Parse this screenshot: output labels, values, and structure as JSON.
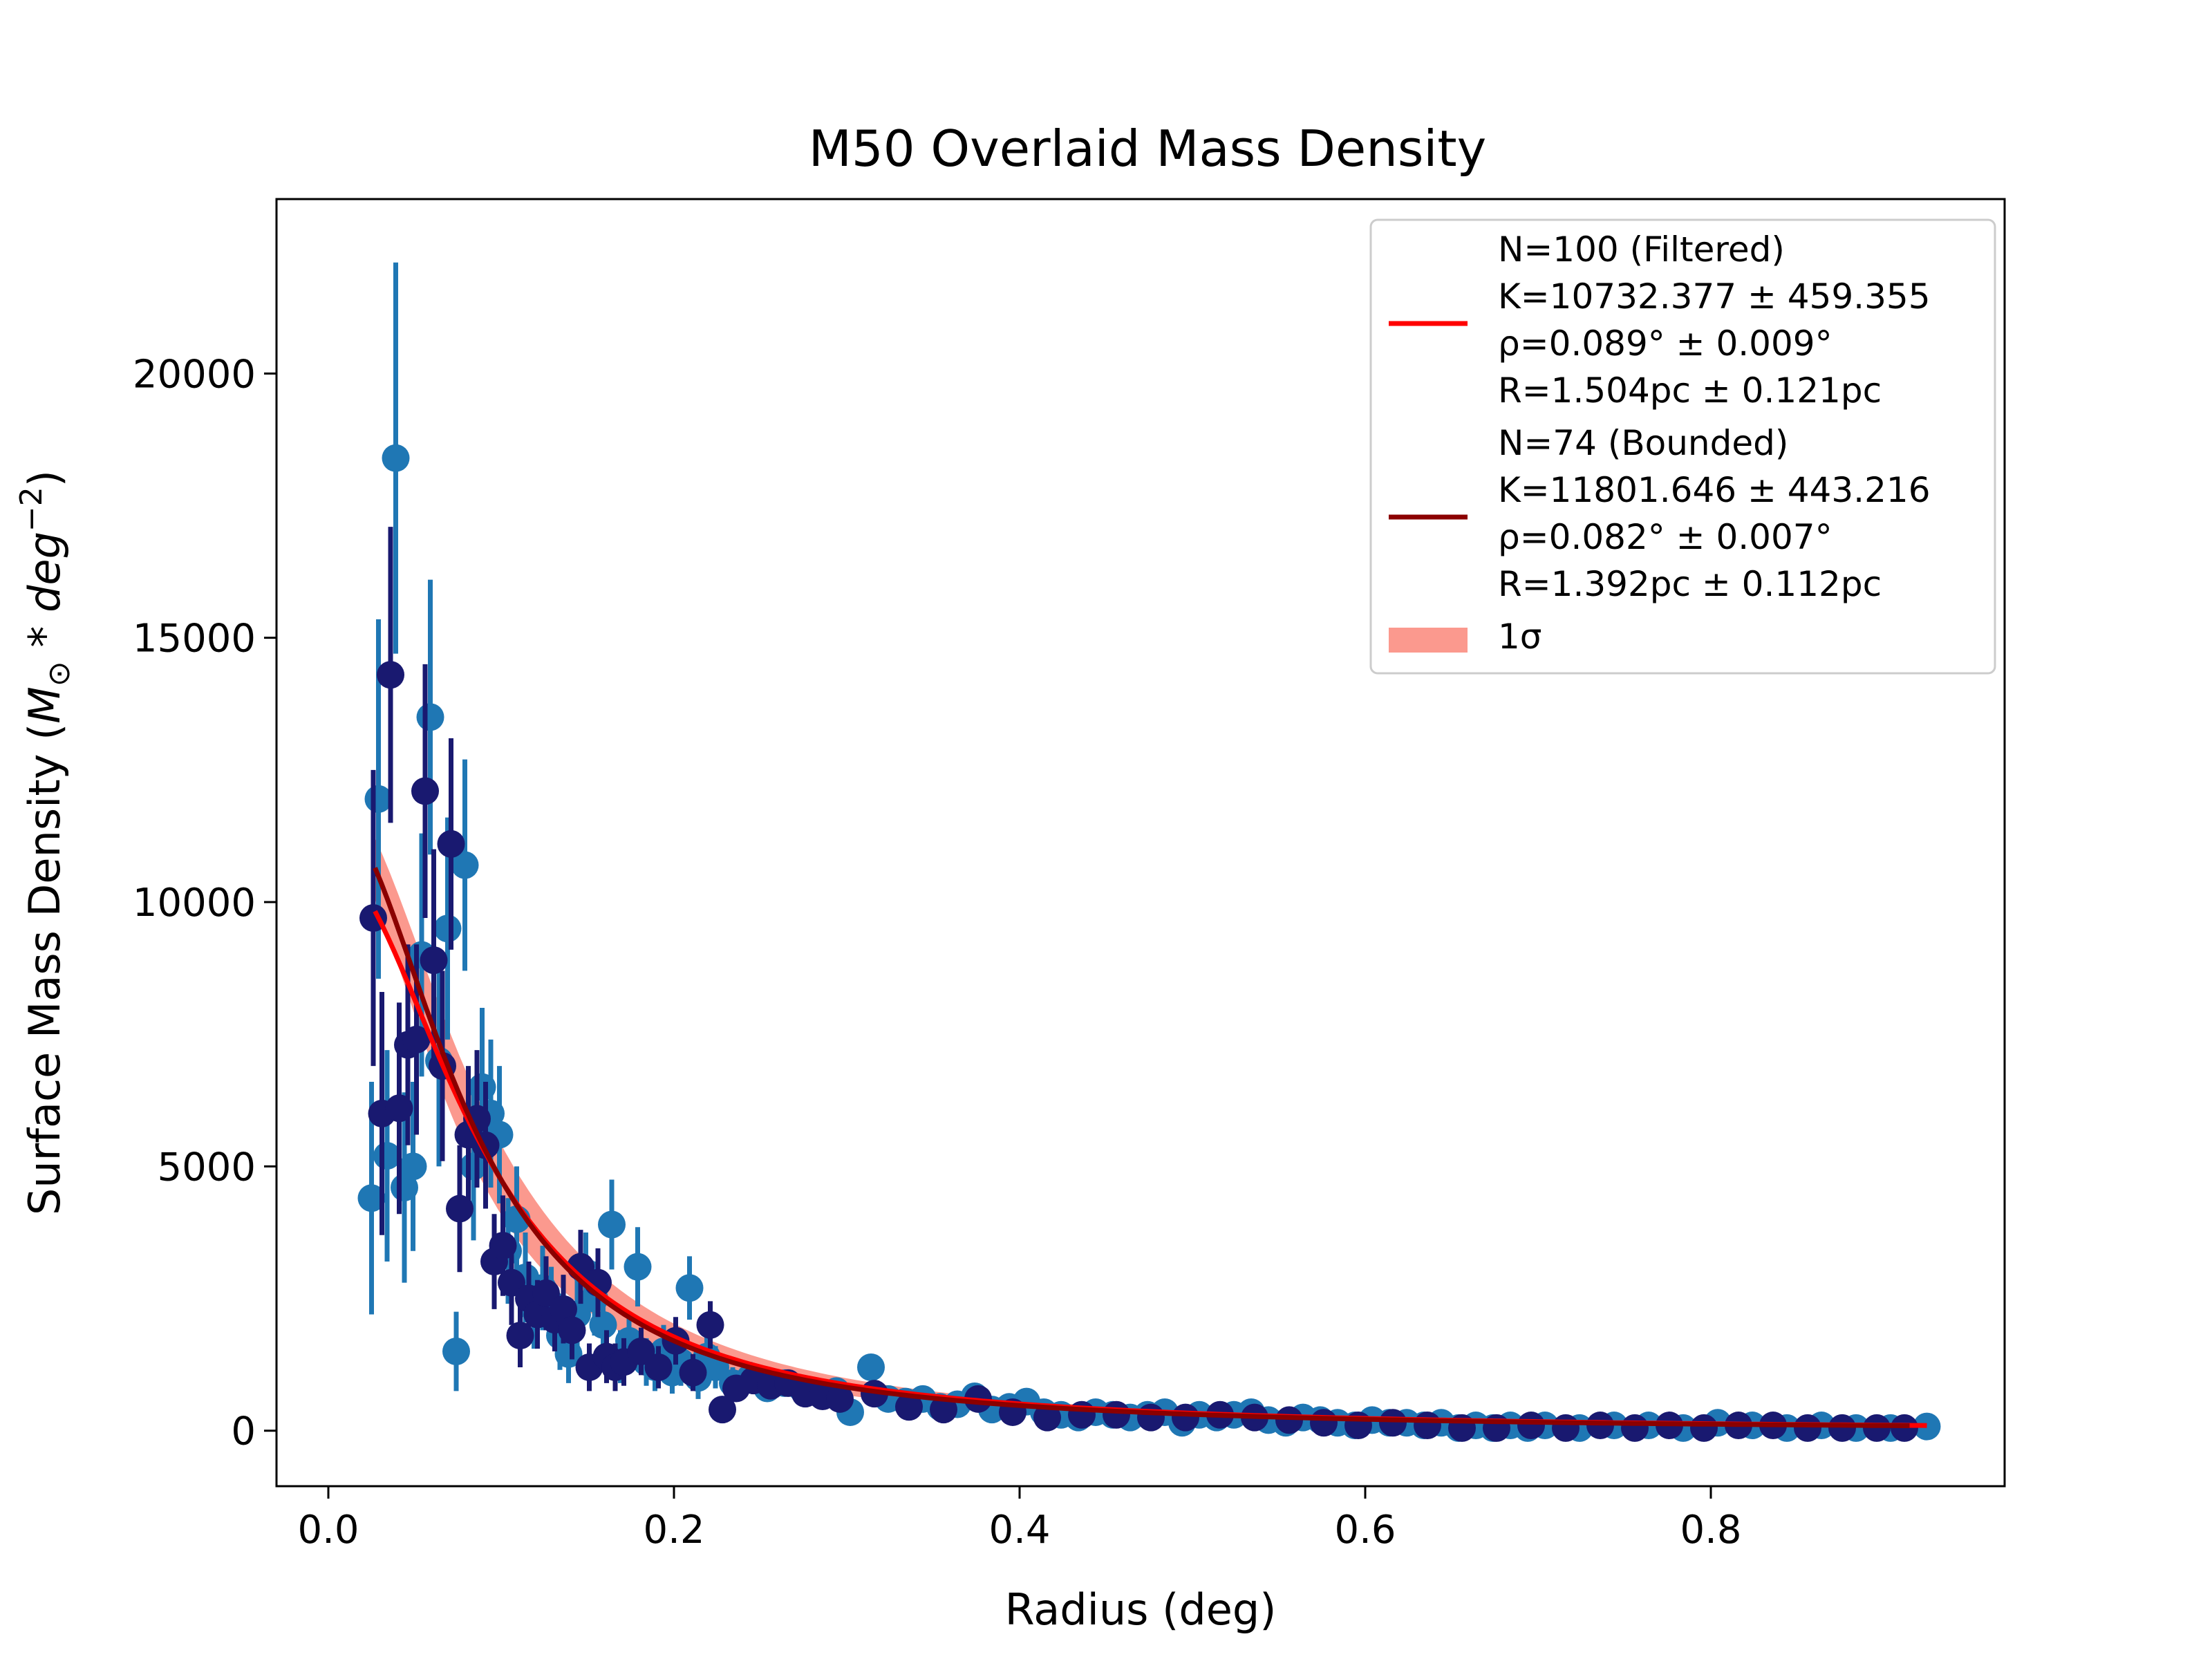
{
  "chart_data": {
    "type": "scatter",
    "title": "M50 Overlaid Mass Density",
    "xlabel": "Radius (deg)",
    "ylabel_main": "Surface Mass Density (",
    "ylabel_math_m": "M",
    "ylabel_math_sub": "⊙",
    "ylabel_math_mid": " * deg",
    "ylabel_math_sup": "−2",
    "ylabel_close": ")",
    "xlim": [
      -0.03,
      0.97
    ],
    "ylim": [
      -1050,
      23300
    ],
    "xticks": [
      0.0,
      0.2,
      0.4,
      0.6,
      0.8
    ],
    "xtick_labels": [
      "0.0",
      "0.2",
      "0.4",
      "0.6",
      "0.8"
    ],
    "yticks": [
      0,
      5000,
      10000,
      15000,
      20000
    ],
    "ytick_labels": [
      "0",
      "5000",
      "10000",
      "15000",
      "20000"
    ],
    "grid": false,
    "legend_position": "top-right",
    "colors": {
      "filtered_points": "#1f77b4",
      "bounded_points": "#191970",
      "filtered_fit": "#ff0000",
      "bounded_fit": "#8b0000",
      "band": "#fa8072"
    },
    "legend": [
      {
        "kind": "line",
        "color": "#ff0000",
        "lines": [
          "N=100 (Filtered)",
          "K=10732.377 ± 459.355",
          "ρ=0.089° ± 0.009°",
          "R=1.504pc ± 0.121pc"
        ]
      },
      {
        "kind": "line",
        "color": "#8b0000",
        "lines": [
          "N=74 (Bounded)",
          "K=11801.646 ± 443.216",
          "ρ=0.082° ± 0.007°",
          "R=1.392pc ± 0.112pc"
        ]
      },
      {
        "kind": "patch",
        "color": "#fa8072",
        "lines": [
          "1σ"
        ]
      }
    ],
    "fits": [
      {
        "name": "N=100 (Filtered)",
        "K": 10732.377,
        "rho": 0.089,
        "color": "#ff0000",
        "x_range": [
          0.027,
          0.925
        ]
      },
      {
        "name": "N=74 (Bounded)",
        "K": 11801.646,
        "rho": 0.082,
        "color": "#8b0000",
        "x_range": [
          0.027,
          0.915
        ]
      }
    ],
    "series": [
      {
        "name": "Filtered",
        "color": "#1f77b4",
        "points": [
          [
            0.025,
            4400,
            2200
          ],
          [
            0.029,
            11950,
            3400
          ],
          [
            0.034,
            5200,
            2000
          ],
          [
            0.039,
            18400,
            3700
          ],
          [
            0.044,
            4600,
            1800
          ],
          [
            0.049,
            5000,
            1600
          ],
          [
            0.054,
            9000,
            2300
          ],
          [
            0.059,
            13500,
            2600
          ],
          [
            0.064,
            7000,
            2000
          ],
          [
            0.069,
            9500,
            2100
          ],
          [
            0.074,
            1500,
            750
          ],
          [
            0.079,
            10700,
            2000
          ],
          [
            0.084,
            5000,
            1400
          ],
          [
            0.089,
            6500,
            1500
          ],
          [
            0.094,
            6000,
            1400
          ],
          [
            0.099,
            5600,
            1300
          ],
          [
            0.104,
            3400,
            1000
          ],
          [
            0.109,
            4000,
            1000
          ],
          [
            0.114,
            2900,
            850
          ],
          [
            0.119,
            2300,
            750
          ],
          [
            0.124,
            2700,
            800
          ],
          [
            0.129,
            2400,
            700
          ],
          [
            0.134,
            1800,
            650
          ],
          [
            0.139,
            1450,
            550
          ],
          [
            0.144,
            2200,
            650
          ],
          [
            0.149,
            3000,
            750
          ],
          [
            0.154,
            2500,
            700
          ],
          [
            0.159,
            2000,
            600
          ],
          [
            0.164,
            3900,
            850
          ],
          [
            0.169,
            1400,
            500
          ],
          [
            0.174,
            1700,
            550
          ],
          [
            0.179,
            3100,
            750
          ],
          [
            0.184,
            1300,
            450
          ],
          [
            0.189,
            1200,
            450
          ],
          [
            0.194,
            1500,
            500
          ],
          [
            0.199,
            1100,
            400
          ],
          [
            0.204,
            1300,
            450
          ],
          [
            0.209,
            2700,
            600
          ],
          [
            0.214,
            1000,
            400
          ],
          [
            0.219,
            1400,
            450
          ],
          [
            0.224,
            1200,
            400
          ],
          [
            0.234,
            900,
            300
          ],
          [
            0.244,
            1000,
            300
          ],
          [
            0.254,
            800,
            250
          ],
          [
            0.264,
            900,
            250
          ],
          [
            0.274,
            800,
            250
          ],
          [
            0.284,
            700,
            220
          ],
          [
            0.294,
            750,
            220
          ],
          [
            0.302,
            350,
            160
          ],
          [
            0.314,
            1200,
            250
          ],
          [
            0.324,
            600,
            180
          ],
          [
            0.334,
            550,
            170
          ],
          [
            0.344,
            600,
            170
          ],
          [
            0.354,
            450,
            150
          ],
          [
            0.364,
            500,
            150
          ],
          [
            0.374,
            650,
            160
          ],
          [
            0.384,
            400,
            130
          ],
          [
            0.394,
            450,
            130
          ],
          [
            0.404,
            550,
            140
          ],
          [
            0.414,
            350,
            120
          ],
          [
            0.424,
            300,
            110
          ],
          [
            0.434,
            250,
            100
          ],
          [
            0.444,
            350,
            110
          ],
          [
            0.454,
            300,
            100
          ],
          [
            0.464,
            250,
            90
          ],
          [
            0.474,
            300,
            100
          ],
          [
            0.484,
            350,
            100
          ],
          [
            0.494,
            150,
            80
          ],
          [
            0.504,
            300,
            90
          ],
          [
            0.514,
            250,
            85
          ],
          [
            0.524,
            300,
            90
          ],
          [
            0.534,
            350,
            90
          ],
          [
            0.544,
            200,
            80
          ],
          [
            0.554,
            150,
            70
          ],
          [
            0.564,
            250,
            80
          ],
          [
            0.574,
            200,
            75
          ],
          [
            0.584,
            150,
            70
          ],
          [
            0.594,
            100,
            60
          ],
          [
            0.604,
            200,
            70
          ],
          [
            0.614,
            150,
            65
          ],
          [
            0.624,
            150,
            60
          ],
          [
            0.634,
            100,
            55
          ],
          [
            0.644,
            150,
            55
          ],
          [
            0.654,
            50,
            50
          ],
          [
            0.664,
            100,
            50
          ],
          [
            0.674,
            50,
            45
          ],
          [
            0.684,
            100,
            45
          ],
          [
            0.694,
            50,
            40
          ],
          [
            0.704,
            100,
            45
          ],
          [
            0.724,
            50,
            40
          ],
          [
            0.744,
            100,
            40
          ],
          [
            0.764,
            100,
            40
          ],
          [
            0.784,
            50,
            35
          ],
          [
            0.804,
            150,
            40
          ],
          [
            0.824,
            100,
            35
          ],
          [
            0.844,
            50,
            30
          ],
          [
            0.864,
            100,
            30
          ],
          [
            0.884,
            50,
            30
          ],
          [
            0.904,
            50,
            30
          ],
          [
            0.925,
            80,
            30
          ]
        ]
      },
      {
        "name": "Bounded",
        "color": "#191970",
        "points": [
          [
            0.026,
            9700,
            2800
          ],
          [
            0.031,
            6000,
            2300
          ],
          [
            0.036,
            14300,
            2800
          ],
          [
            0.041,
            6100,
            2000
          ],
          [
            0.046,
            7300,
            1900
          ],
          [
            0.051,
            7400,
            1800
          ],
          [
            0.056,
            12100,
            2400
          ],
          [
            0.061,
            8900,
            2100
          ],
          [
            0.066,
            6900,
            1800
          ],
          [
            0.071,
            11100,
            2000
          ],
          [
            0.076,
            4200,
            1200
          ],
          [
            0.081,
            5600,
            1300
          ],
          [
            0.086,
            5900,
            1300
          ],
          [
            0.091,
            5400,
            1200
          ],
          [
            0.096,
            3200,
            900
          ],
          [
            0.101,
            3500,
            950
          ],
          [
            0.106,
            2800,
            800
          ],
          [
            0.111,
            1800,
            600
          ],
          [
            0.116,
            2500,
            700
          ],
          [
            0.121,
            2200,
            650
          ],
          [
            0.126,
            2600,
            700
          ],
          [
            0.131,
            2100,
            600
          ],
          [
            0.136,
            2300,
            650
          ],
          [
            0.141,
            1900,
            550
          ],
          [
            0.146,
            3100,
            700
          ],
          [
            0.151,
            1200,
            450
          ],
          [
            0.156,
            2800,
            650
          ],
          [
            0.161,
            1400,
            500
          ],
          [
            0.166,
            1200,
            450
          ],
          [
            0.171,
            1300,
            450
          ],
          [
            0.181,
            1500,
            450
          ],
          [
            0.191,
            1200,
            400
          ],
          [
            0.201,
            1700,
            450
          ],
          [
            0.211,
            1100,
            350
          ],
          [
            0.221,
            2000,
            450
          ],
          [
            0.228,
            400,
            200
          ],
          [
            0.236,
            800,
            250
          ],
          [
            0.246,
            950,
            260
          ],
          [
            0.256,
            850,
            240
          ],
          [
            0.266,
            900,
            240
          ],
          [
            0.276,
            700,
            210
          ],
          [
            0.286,
            650,
            200
          ],
          [
            0.296,
            600,
            180
          ],
          [
            0.316,
            700,
            180
          ],
          [
            0.336,
            450,
            150
          ],
          [
            0.356,
            400,
            140
          ],
          [
            0.376,
            600,
            150
          ],
          [
            0.396,
            350,
            120
          ],
          [
            0.416,
            250,
            100
          ],
          [
            0.436,
            300,
            100
          ],
          [
            0.456,
            300,
            95
          ],
          [
            0.476,
            250,
            90
          ],
          [
            0.496,
            250,
            85
          ],
          [
            0.516,
            300,
            85
          ],
          [
            0.536,
            250,
            80
          ],
          [
            0.556,
            200,
            75
          ],
          [
            0.576,
            150,
            70
          ],
          [
            0.596,
            100,
            60
          ],
          [
            0.616,
            150,
            60
          ],
          [
            0.636,
            100,
            55
          ],
          [
            0.656,
            50,
            50
          ],
          [
            0.676,
            50,
            45
          ],
          [
            0.696,
            100,
            45
          ],
          [
            0.716,
            50,
            40
          ],
          [
            0.736,
            100,
            40
          ],
          [
            0.756,
            50,
            35
          ],
          [
            0.776,
            100,
            35
          ],
          [
            0.796,
            50,
            35
          ],
          [
            0.816,
            100,
            30
          ],
          [
            0.836,
            100,
            30
          ],
          [
            0.856,
            50,
            30
          ],
          [
            0.876,
            50,
            28
          ],
          [
            0.896,
            50,
            28
          ],
          [
            0.912,
            50,
            28
          ]
        ]
      }
    ]
  }
}
